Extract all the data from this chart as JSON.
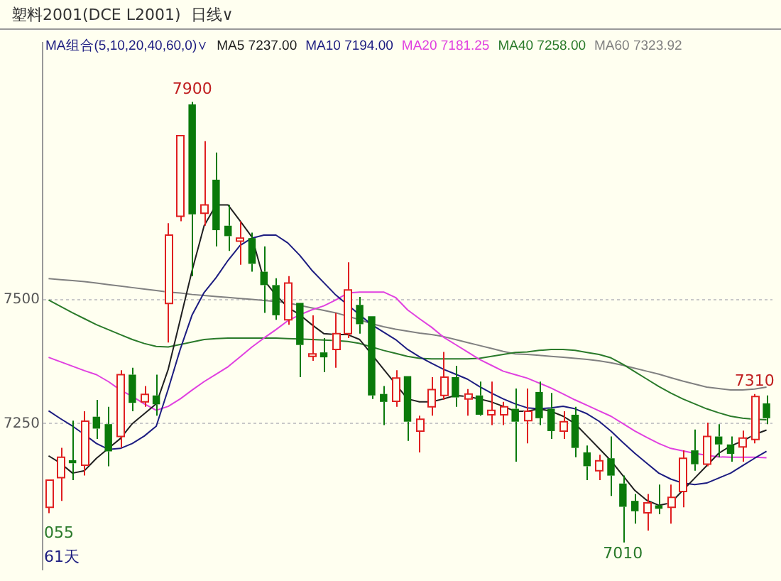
{
  "chart_data": {
    "type": "candlestick",
    "title": "塑料2001(DCE L2001)  日线∨",
    "legend_title": "MA组合(5,10,20,40,60,0)∨",
    "legend": "top",
    "grid": "y",
    "tick_labels": "y",
    "categories": [
      null,
      null,
      null,
      null,
      null,
      null,
      null,
      null,
      null,
      null,
      null,
      null,
      null,
      null,
      null,
      null,
      null,
      null,
      null,
      null,
      null,
      null,
      null,
      null,
      null,
      null,
      null,
      null,
      null,
      null,
      null,
      null,
      null,
      null,
      null,
      null,
      null,
      null,
      null,
      null,
      null,
      null,
      null,
      null,
      null,
      null,
      null,
      null,
      null,
      null,
      null,
      null,
      null,
      null,
      null,
      null,
      null,
      null,
      null,
      null,
      null
    ],
    "ylim": [
      6955,
      8020
    ],
    "yticks": [
      7250,
      7500
    ],
    "ohlc": [
      [
        7081,
        7136,
        7069,
        7136
      ],
      [
        7141,
        7201,
        7094,
        7182
      ],
      [
        7176,
        7256,
        7136,
        7170
      ],
      [
        7166,
        7275,
        7145,
        7255
      ],
      [
        7264,
        7298,
        7219,
        7240
      ],
      [
        7249,
        7284,
        7164,
        7194
      ],
      [
        7224,
        7358,
        7201,
        7349
      ],
      [
        7349,
        7363,
        7275,
        7292
      ],
      [
        7294,
        7326,
        7284,
        7309
      ],
      [
        7307,
        7349,
        7266,
        7289
      ],
      [
        7493,
        7655,
        7414,
        7631
      ],
      [
        7669,
        7832,
        7659,
        7832
      ],
      [
        7895,
        7900,
        7548,
        7673
      ],
      [
        7675,
        7821,
        7650,
        7692
      ],
      [
        7743,
        7798,
        7608,
        7641
      ],
      [
        7650,
        7692,
        7599,
        7629
      ],
      [
        7619,
        7659,
        7571,
        7625
      ],
      [
        7625,
        7636,
        7557,
        7573
      ],
      [
        7557,
        7608,
        7474,
        7530
      ],
      [
        7530,
        7544,
        7460,
        7469
      ],
      [
        7460,
        7548,
        7450,
        7534
      ],
      [
        7494,
        7494,
        7344,
        7409
      ],
      [
        7386,
        7469,
        7377,
        7391
      ],
      [
        7394,
        7423,
        7354,
        7384
      ],
      [
        7400,
        7474,
        7363,
        7432
      ],
      [
        7432,
        7576,
        7423,
        7520
      ],
      [
        7490,
        7506,
        7432,
        7451
      ],
      [
        7467,
        7467,
        7300,
        7307
      ],
      [
        7310,
        7326,
        7247,
        7294
      ],
      [
        7295,
        7358,
        7284,
        7342
      ],
      [
        7346,
        7346,
        7215,
        7254
      ],
      [
        7235,
        7266,
        7192,
        7259
      ],
      [
        7284,
        7344,
        7266,
        7319
      ],
      [
        7307,
        7395,
        7298,
        7344
      ],
      [
        7344,
        7367,
        7284,
        7303
      ],
      [
        7300,
        7320,
        7266,
        7310
      ],
      [
        7307,
        7335,
        7266,
        7268
      ],
      [
        7268,
        7335,
        7247,
        7277
      ],
      [
        7268,
        7294,
        7247,
        7284
      ],
      [
        7280,
        7321,
        7173,
        7254
      ],
      [
        7256,
        7321,
        7210,
        7275
      ],
      [
        7314,
        7335,
        7247,
        7261
      ],
      [
        7280,
        7312,
        7219,
        7235
      ],
      [
        7235,
        7275,
        7219,
        7254
      ],
      [
        7268,
        7284,
        7182,
        7201
      ],
      [
        7192,
        7206,
        7136,
        7164
      ],
      [
        7155,
        7187,
        7136,
        7175
      ],
      [
        7180,
        7224,
        7104,
        7145
      ],
      [
        7129,
        7145,
        7010,
        7082
      ],
      [
        7094,
        7108,
        7048,
        7073
      ],
      [
        7070,
        7108,
        7034,
        7090
      ],
      [
        7085,
        7127,
        7067,
        7078
      ],
      [
        7081,
        7127,
        7048,
        7101
      ],
      [
        7113,
        7196,
        7081,
        7180
      ],
      [
        7196,
        7238,
        7155,
        7168
      ],
      [
        7168,
        7252,
        7164,
        7224
      ],
      [
        7224,
        7249,
        7182,
        7208
      ],
      [
        7208,
        7224,
        7173,
        7189
      ],
      [
        7203,
        7236,
        7173,
        7221
      ],
      [
        7218,
        7310,
        7210,
        7305
      ],
      [
        7291,
        7307,
        7249,
        7261
      ]
    ],
    "series": [
      {
        "name": "MA5 7237.00",
        "type": "line",
        "color": "#202020",
        "values": [
          7185,
          7170,
          7150,
          7155,
          7180,
          7200,
          7220,
          7250,
          7270,
          7290,
          7360,
          7460,
          7560,
          7650,
          7692,
          7692,
          7660,
          7627,
          7540,
          7510,
          7485,
          7470,
          7450,
          7432,
          7430,
          7430,
          7420,
          7390,
          7360,
          7330,
          7300,
          7294,
          7294,
          7300,
          7307,
          7305,
          7300,
          7294,
          7285,
          7275,
          7275,
          7280,
          7275,
          7265,
          7250,
          7225,
          7200,
          7175,
          7145,
          7115,
          7095,
          7085,
          7090,
          7115,
          7140,
          7165,
          7190,
          7205,
          7215,
          7228,
          7237
        ]
      },
      {
        "name": "MA10 7194.00",
        "type": "line",
        "color": "#1c1c80",
        "values": [
          7276,
          7260,
          7245,
          7228,
          7210,
          7198,
          7200,
          7210,
          7225,
          7245,
          7320,
          7400,
          7470,
          7515,
          7545,
          7580,
          7610,
          7625,
          7631,
          7631,
          7615,
          7590,
          7560,
          7535,
          7510,
          7490,
          7470,
          7450,
          7435,
          7420,
          7400,
          7385,
          7372,
          7360,
          7350,
          7340,
          7325,
          7312,
          7300,
          7290,
          7282,
          7280,
          7282,
          7285,
          7280,
          7270,
          7255,
          7235,
          7212,
          7190,
          7170,
          7150,
          7138,
          7130,
          7127,
          7130,
          7140,
          7150,
          7165,
          7180,
          7194
        ]
      },
      {
        "name": "MA20 7181.25",
        "type": "line",
        "color": "#e040e0",
        "values": [
          7384,
          7375,
          7366,
          7357,
          7349,
          7335,
          7318,
          7305,
          7290,
          7277,
          7285,
          7300,
          7318,
          7335,
          7350,
          7365,
          7385,
          7405,
          7423,
          7440,
          7458,
          7470,
          7480,
          7488,
          7500,
          7514,
          7516,
          7516,
          7516,
          7505,
          7480,
          7462,
          7445,
          7425,
          7410,
          7395,
          7380,
          7368,
          7356,
          7349,
          7342,
          7332,
          7322,
          7310,
          7298,
          7287,
          7276,
          7265,
          7250,
          7235,
          7222,
          7210,
          7200,
          7195,
          7190,
          7186,
          7183,
          7182,
          7182,
          7182,
          7181
        ]
      },
      {
        "name": "MA40 7258.00",
        "type": "line",
        "color": "#2a7a2a",
        "values": [
          7500,
          7487,
          7474,
          7462,
          7450,
          7440,
          7430,
          7420,
          7412,
          7406,
          7405,
          7410,
          7415,
          7420,
          7422,
          7423,
          7423,
          7423,
          7423,
          7423,
          7422,
          7421,
          7420,
          7419,
          7418,
          7416,
          7412,
          7405,
          7398,
          7392,
          7386,
          7382,
          7381,
          7381,
          7381,
          7381,
          7382,
          7386,
          7390,
          7394,
          7395,
          7398,
          7400,
          7400,
          7398,
          7394,
          7390,
          7383,
          7370,
          7355,
          7340,
          7325,
          7312,
          7300,
          7290,
          7280,
          7272,
          7265,
          7261,
          7259,
          7258
        ]
      },
      {
        "name": "MA60 7323.92",
        "type": "line",
        "color": "#808080",
        "values": [
          7543,
          7541,
          7539,
          7537,
          7534,
          7531,
          7528,
          7525,
          7522,
          7519,
          7516,
          7514,
          7511,
          7509,
          7507,
          7505,
          7503,
          7501,
          7499,
          7497,
          7494,
          7489,
          7484,
          7479,
          7474,
          7467,
          7460,
          7452,
          7446,
          7441,
          7437,
          7433,
          7430,
          7426,
          7420,
          7414,
          7408,
          7402,
          7396,
          7391,
          7390,
          7388,
          7386,
          7384,
          7382,
          7380,
          7377,
          7373,
          7368,
          7362,
          7356,
          7350,
          7343,
          7336,
          7330,
          7324,
          7321,
          7318,
          7318,
          7320,
          7324
        ]
      }
    ],
    "annotations": [
      {
        "text": "7900",
        "y": 7900
      },
      {
        "text": "7010",
        "y": 7010
      },
      {
        "text": "7310",
        "y": 7310
      },
      "055",
      "61天"
    ]
  }
}
